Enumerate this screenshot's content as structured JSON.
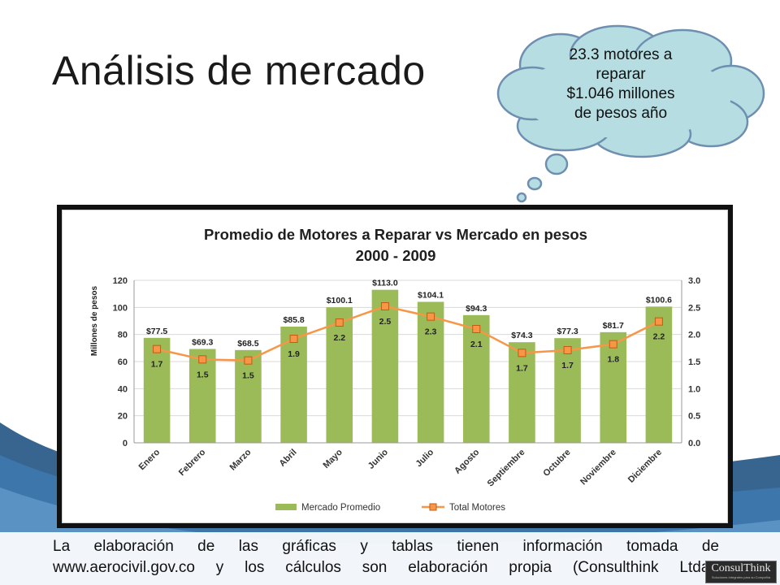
{
  "slide": {
    "title": "Análisis de mercado"
  },
  "bubble": {
    "lines": [
      "23.3 motores a",
      "reparar",
      "$1.046 millones",
      "de pesos año"
    ]
  },
  "chart_data": {
    "type": "bar",
    "title": "Promedio de Motores a Reparar vs Mercado en pesos",
    "subtitle": "2000 - 2009",
    "ylabel": "Millones de pesos",
    "categories": [
      "Enero",
      "Febrero",
      "Marzo",
      "Abril",
      "Mayo",
      "Junio",
      "Julio",
      "Agosto",
      "Septiembre",
      "Octubre",
      "Noviembre",
      "Diciembre"
    ],
    "ylim": [
      0,
      120
    ],
    "yticks": [
      "0",
      "20",
      "40",
      "60",
      "80",
      "100",
      "120"
    ],
    "y2lim": [
      0,
      3
    ],
    "y2ticks": [
      "0.0",
      "0.5",
      "1.0",
      "1.5",
      "2.0",
      "2.5",
      "3.0"
    ],
    "grid": true,
    "legend_position": "bottom",
    "series": [
      {
        "name": "Mercado Promedio",
        "type": "bar",
        "axis": "left",
        "color": "#9bbb59",
        "values": [
          77.5,
          69.3,
          68.5,
          85.8,
          100.1,
          113.0,
          104.1,
          94.3,
          74.3,
          77.3,
          81.7,
          100.6
        ],
        "labels": [
          "$77.5",
          "$69.3",
          "$68.5",
          "$85.8",
          "$100.1",
          "$113.0",
          "$104.1",
          "$94.3",
          "$74.3",
          "$77.3",
          "$81.7",
          "$100.6"
        ]
      },
      {
        "name": "Total Motores",
        "type": "line",
        "axis": "right",
        "color": "#f79646",
        "values": [
          1.73,
          1.54,
          1.52,
          1.92,
          2.22,
          2.52,
          2.33,
          2.1,
          1.66,
          1.71,
          1.82,
          2.24
        ],
        "labels": [
          "1.7",
          "1.5",
          "1.5",
          "1.9",
          "2.2",
          "2.5",
          "2.3",
          "2.1",
          "1.7",
          "1.7",
          "1.8",
          "2.2"
        ]
      }
    ]
  },
  "source": {
    "line1": "La elaboración de las gráficas y tablas tienen información tomada de",
    "line2": "www.aerocivil.gov.co y los cálculos son elaboración propia (Consulthink Ltda.)"
  },
  "logo": {
    "name": "ConsulThink",
    "tagline": "Soluciones Integrales para su Compañía"
  },
  "colors": {
    "frame": "#111111",
    "bubble_fill": "#b6dde2",
    "bubble_stroke": "#6f8fb0",
    "title_text": "#1f1f1f",
    "swoosh": "#2c5d8a"
  }
}
